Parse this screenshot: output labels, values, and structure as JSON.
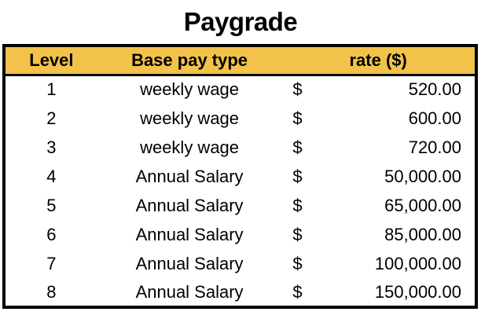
{
  "title": "Paygrade",
  "table": {
    "columns": [
      "Level",
      "Base pay type",
      "rate ($)"
    ],
    "rows": [
      {
        "level": "1",
        "base_pay_type": "weekly wage",
        "currency": "$",
        "rate": "520.00"
      },
      {
        "level": "2",
        "base_pay_type": "weekly wage",
        "currency": "$",
        "rate": "600.00"
      },
      {
        "level": "3",
        "base_pay_type": "weekly wage",
        "currency": "$",
        "rate": "720.00"
      },
      {
        "level": "4",
        "base_pay_type": "Annual Salary",
        "currency": "$",
        "rate": "50,000.00"
      },
      {
        "level": "5",
        "base_pay_type": "Annual Salary",
        "currency": "$",
        "rate": "65,000.00"
      },
      {
        "level": "6",
        "base_pay_type": "Annual Salary",
        "currency": "$",
        "rate": "85,000.00"
      },
      {
        "level": "7",
        "base_pay_type": "Annual Salary",
        "currency": "$",
        "rate": "100,000.00"
      },
      {
        "level": "8",
        "base_pay_type": "Annual Salary",
        "currency": "$",
        "rate": "150,000.00"
      }
    ]
  },
  "chart_data": {
    "type": "table",
    "title": "Paygrade",
    "columns": [
      "Level",
      "Base pay type",
      "rate ($)"
    ],
    "rows": [
      [
        1,
        "weekly wage",
        520.0
      ],
      [
        2,
        "weekly wage",
        600.0
      ],
      [
        3,
        "weekly wage",
        720.0
      ],
      [
        4,
        "Annual Salary",
        50000.0
      ],
      [
        5,
        "Annual Salary",
        65000.0
      ],
      [
        6,
        "Annual Salary",
        85000.0
      ],
      [
        7,
        "Annual Salary",
        100000.0
      ],
      [
        8,
        "Annual Salary",
        150000.0
      ]
    ]
  },
  "colors": {
    "header_bg": "#F2C24A",
    "border": "#000000",
    "text": "#000000",
    "background": "#FFFFFF"
  }
}
